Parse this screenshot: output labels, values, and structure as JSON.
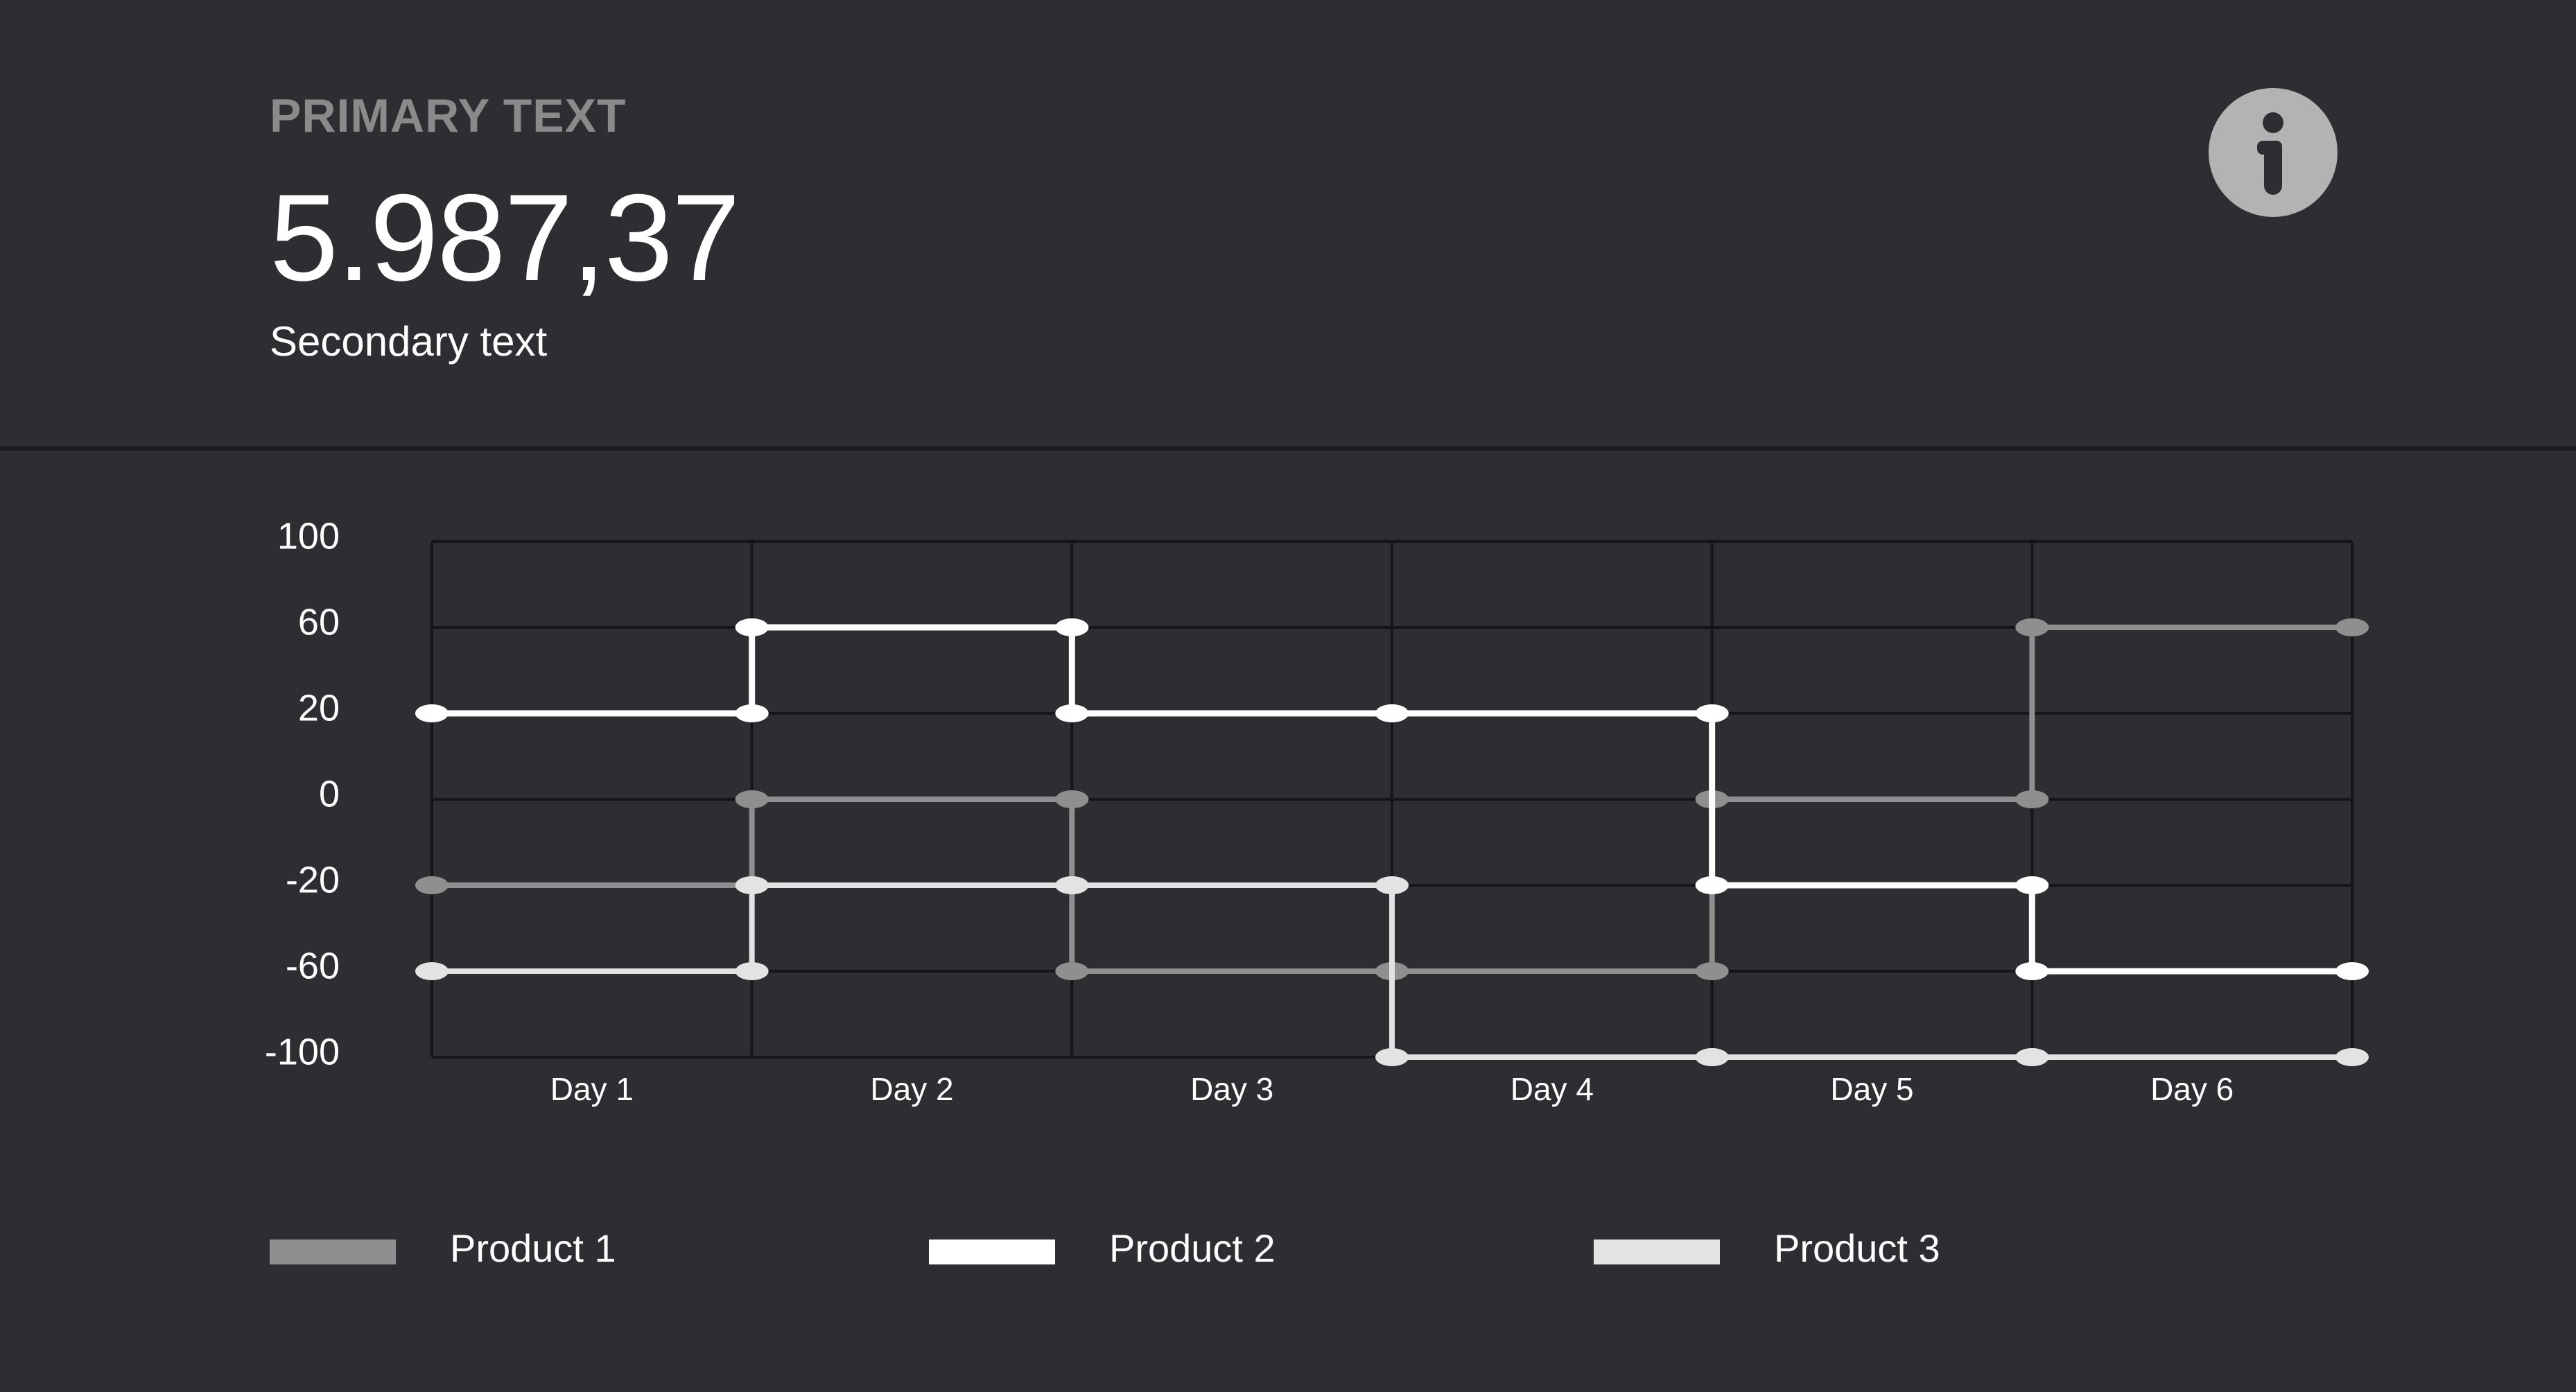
{
  "header": {
    "eyebrow": "PRIMARY TEXT",
    "value": "5.987,37",
    "secondary": "Secondary text",
    "info_icon": "info-icon"
  },
  "chart_data": {
    "type": "line",
    "step": true,
    "title": "",
    "xlabel": "",
    "ylabel": "",
    "y_ticks": [
      "100",
      "60",
      "20",
      "0",
      "-20",
      "-60",
      "-100"
    ],
    "y_tick_values": [
      100,
      60,
      20,
      0,
      -20,
      -60,
      -100
    ],
    "categories": [
      "Day 1",
      "Day 2",
      "Day 3",
      "Day 4",
      "Day 5",
      "Day 6"
    ],
    "grid": true,
    "legend_position": "bottom",
    "series": [
      {
        "name": "Product 1",
        "color": "#8f8f8f",
        "values": [
          -20,
          0,
          -60,
          -60,
          0,
          60
        ]
      },
      {
        "name": "Product 2",
        "color": "#ffffff",
        "values": [
          20,
          60,
          20,
          20,
          -20,
          -60
        ]
      },
      {
        "name": "Product 3",
        "color": "#e3e3e3",
        "values": [
          -60,
          -20,
          -20,
          -100,
          -100,
          -100
        ]
      }
    ]
  }
}
